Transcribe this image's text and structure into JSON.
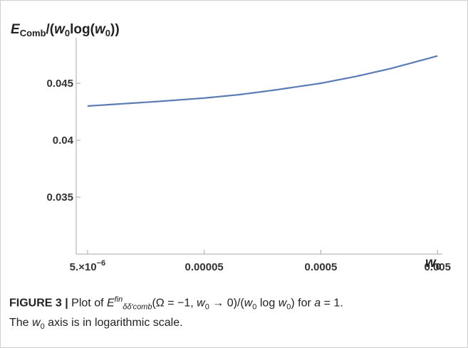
{
  "chart_data": {
    "type": "line",
    "x_scale": "log",
    "title": "",
    "ylabel_main": "E",
    "ylabel_sub": "Comb",
    "ylabel_mid": "/(",
    "ylabel_w": "w",
    "ylabel_w_sub": "0",
    "ylabel_log": "log(",
    "ylabel_w2": "w",
    "ylabel_w2_sub": "0",
    "ylabel_end": "))",
    "xlabel_w": "w",
    "xlabel_sub": "0",
    "xlim": [
      4e-06,
      0.0055
    ],
    "ylim": [
      0.03,
      0.049
    ],
    "x_ticks": [
      {
        "value": 5e-06,
        "label": "5.×10",
        "exp": "−6"
      },
      {
        "value": 5e-05,
        "label": "0.00005",
        "exp": ""
      },
      {
        "value": 0.0005,
        "label": "0.0005",
        "exp": ""
      },
      {
        "value": 0.005,
        "label": "0.005",
        "exp": ""
      }
    ],
    "y_ticks": [
      {
        "value": 0.035,
        "label": "0.035"
      },
      {
        "value": 0.04,
        "label": "0.04"
      },
      {
        "value": 0.045,
        "label": "0.045"
      }
    ],
    "x": [
      5e-06,
      1e-05,
      2e-05,
      5e-05,
      0.0001,
      0.0002,
      0.0005,
      0.001,
      0.002,
      0.005
    ],
    "y": [
      0.043,
      0.0432,
      0.0434,
      0.0437,
      0.044,
      0.0444,
      0.045,
      0.0456,
      0.0463,
      0.0474
    ],
    "line_color": "#5b7bb5",
    "axis_color": "#aaaaaa",
    "grid": false
  },
  "caption": {
    "label": "FIGURE 3 |",
    "text1": "Plot of",
    "E": "E",
    "E_sup": "fin",
    "E_sub": "δδ′comb",
    "args_open": "(Ω = −1,",
    "arg_w": "w",
    "arg_w_sub": "0",
    "arrow": "→ 0)/(",
    "div_w": "w",
    "div_w_sub": "0",
    "log_text": "log",
    "log_w": "w",
    "log_w_sub": "0",
    "close": ") for",
    "a_var": "a",
    "a_eq": "= 1.",
    "line2_pre": "The",
    "line2_w": "w",
    "line2_w_sub": "0",
    "line2_post": "axis is in logarithmic scale."
  }
}
